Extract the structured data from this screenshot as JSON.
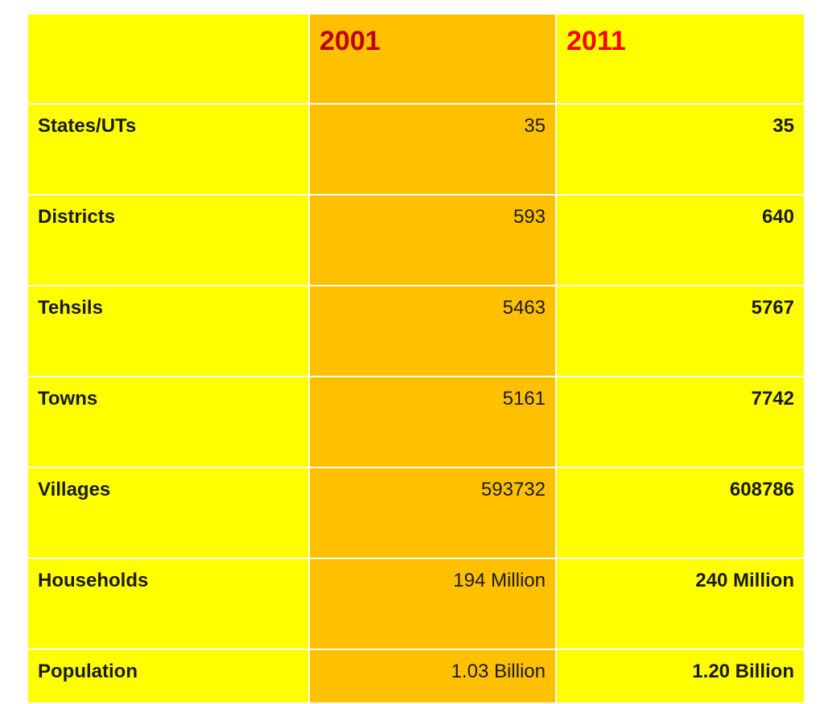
{
  "table": {
    "header": {
      "corner": "",
      "year_2001": "2001",
      "year_2011": "2011"
    },
    "rows": [
      {
        "label": "States/UTs",
        "v2001": "35",
        "v2011": "35"
      },
      {
        "label": "Districts",
        "v2001": "593",
        "v2011": "640"
      },
      {
        "label": "Tehsils",
        "v2001": "5463",
        "v2011": "5767"
      },
      {
        "label": "Towns",
        "v2001": "5161",
        "v2011": "7742"
      },
      {
        "label": "Villages",
        "v2001": "593732",
        "v2011": "608786"
      },
      {
        "label": "Households",
        "v2001": "194 Million",
        "v2011": "240 Million"
      },
      {
        "label": "Population",
        "v2001": "1.03 Billion",
        "v2011": "1.20 Billion"
      }
    ]
  },
  "colors": {
    "label_bg": "#ffff00",
    "col_2001_bg": "#ffc000",
    "col_2011_bg": "#ffff00",
    "header_year_2001": "#c00000",
    "header_year_2011": "#ff0000"
  }
}
